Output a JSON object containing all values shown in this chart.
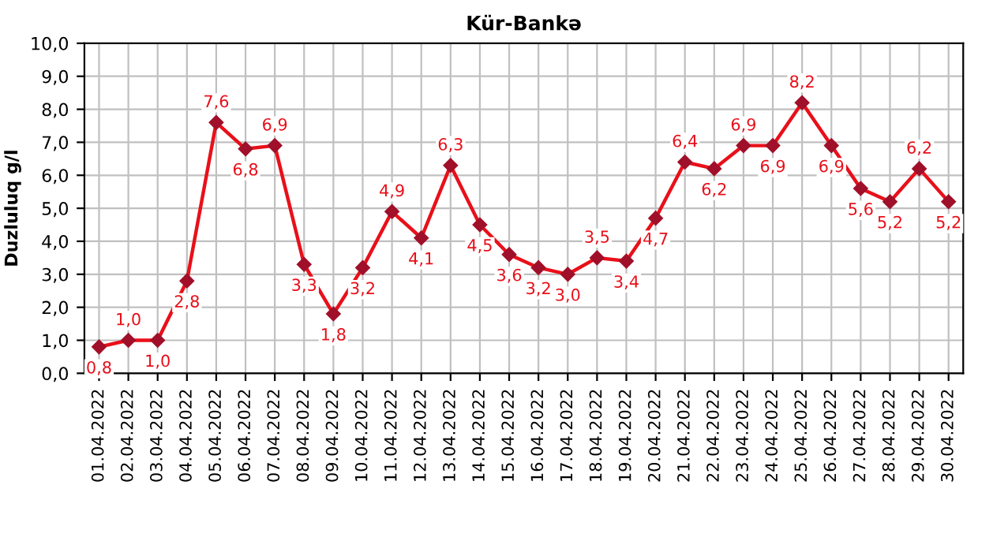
{
  "chart_data": {
    "type": "line",
    "title": "Kür-Bankə",
    "ylabel": "Duzluluq g/l",
    "categories": [
      "01.04.2022",
      "02.04.2022",
      "03.04.2022",
      "04.04.2022",
      "05.04.2022",
      "06.04.2022",
      "07.04.2022",
      "08.04.2022",
      "09.04.2022",
      "10.04.2022",
      "11.04.2022",
      "12.04.2022",
      "13.04.2022",
      "14.04.2022",
      "15.04.2022",
      "16.04.2022",
      "17.04.2022",
      "18.04.2022",
      "19.04.2022",
      "20.04.2022",
      "21.04.2022",
      "22.04.2022",
      "23.04.2022",
      "24.04.2022",
      "25.04.2022",
      "26.04.2022",
      "27.04.2022",
      "28.04.2022",
      "29.04.2022",
      "30.04.2022"
    ],
    "series": [
      {
        "color": "#e8101a",
        "values": [
          0.8,
          1.0,
          1.0,
          2.8,
          7.6,
          6.8,
          6.9,
          3.3,
          1.8,
          3.2,
          4.9,
          4.1,
          6.3,
          4.5,
          3.6,
          3.2,
          3.0,
          3.5,
          3.4,
          4.7,
          6.4,
          6.2,
          6.9,
          6.9,
          8.2,
          6.9,
          5.6,
          5.2,
          6.2,
          5.2
        ],
        "value_labels": [
          "0,8",
          "1,0",
          "1,0",
          "2,8",
          "7,6",
          "6,8",
          "6,9",
          "3,3",
          "1,8",
          "3,2",
          "4,9",
          "4,1",
          "6,3",
          "4,5",
          "3,6",
          "3,2",
          "3,0",
          "3,5",
          "3,4",
          "4,7",
          "6,4",
          "6,2",
          "6,9",
          "6,9",
          "8,2",
          "6,9",
          "5,6",
          "5,2",
          "6,2",
          "5,2"
        ]
      }
    ],
    "ylim": [
      0,
      10
    ],
    "yticks": [
      {
        "value": 0,
        "label": "0,0"
      },
      {
        "value": 1,
        "label": "1,0"
      },
      {
        "value": 2,
        "label": "2,0"
      },
      {
        "value": 3,
        "label": "3,0"
      },
      {
        "value": 4,
        "label": "4,0"
      },
      {
        "value": 5,
        "label": "5,0"
      },
      {
        "value": 6,
        "label": "6,0"
      },
      {
        "value": 7,
        "label": "7,0"
      },
      {
        "value": 8,
        "label": "8,0"
      },
      {
        "value": 9,
        "label": "9,0"
      },
      {
        "value": 10,
        "label": "10,0"
      }
    ],
    "grid": true,
    "marker": "diamond",
    "line_style": "solid"
  }
}
